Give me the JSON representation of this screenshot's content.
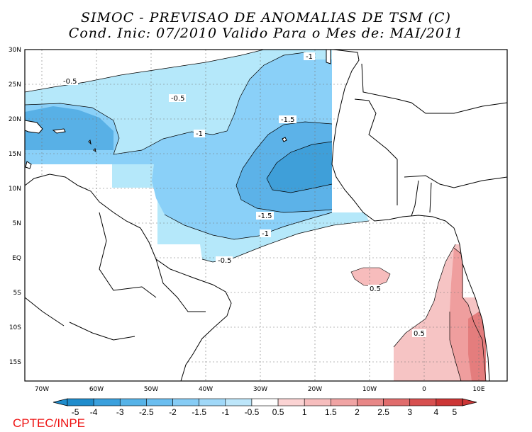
{
  "title_line1": "SIMOC - PREVISAO DE ANOMALIAS DE TSM (C)",
  "title_line2": "Cond. Inic: 07/2010   Valido Para o Mes de: MAI/2011",
  "credit": "CPTEC/INPE",
  "lat_labels": [
    "30N",
    "25N",
    "20N",
    "15N",
    "10N",
    "5N",
    "EQ",
    "5S",
    "10S",
    "15S"
  ],
  "lon_labels": [
    "70W",
    "60W",
    "50W",
    "40W",
    "30W",
    "20W",
    "10W",
    "0",
    "10E"
  ],
  "contour_labels": [
    "-0.5",
    "-0.5",
    "-1",
    "-1",
    "-1.5",
    "-1.5",
    "-1",
    "-0.5",
    "0.5",
    "0.5"
  ],
  "colorbar": {
    "ticks": [
      "-5",
      "-4",
      "-3",
      "-2.5",
      "-2",
      "-1.5",
      "-1",
      "-0.5",
      "0.5",
      "1",
      "1.5",
      "2",
      "2.5",
      "3",
      "4",
      "5"
    ],
    "colors": [
      "#1f8ccc",
      "#3aa0dd",
      "#56b3e8",
      "#6bbef0",
      "#86ccf5",
      "#a0d8f8",
      "#bde6fa",
      "#ffffff",
      "#fbd3d3",
      "#f6bdbd",
      "#f0a4a4",
      "#e88787",
      "#e06c6c",
      "#d75050",
      "#cc3636"
    ]
  }
}
